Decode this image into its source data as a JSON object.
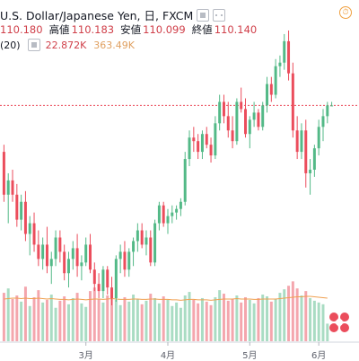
{
  "header": {
    "title": "U.S. Dollar/Japanese Yen, 日, FXCM",
    "open_value": "110.180",
    "high_label": "高値",
    "high_value": "110.183",
    "low_label": "安値",
    "low_value": "110.099",
    "close_label": "終値",
    "close_value": "110.140"
  },
  "volume_legend": {
    "label": "(20)",
    "value_a": "22.872K",
    "value_b": "363.49K"
  },
  "colors": {
    "up": "#53b987",
    "down": "#eb4d5c",
    "vol_up": "#a9dcc3",
    "vol_down": "#f4a6ad",
    "vol_ma": "#f0a050",
    "last_price_line": "#eb4d5c"
  },
  "icons": [
    "square-icon",
    "settings-dots-icon",
    "alert-clock-icon",
    "chart-logo-icon"
  ],
  "chart_data": {
    "type": "candlestick",
    "title": "U.S. Dollar/Japanese Yen, 日, FXCM",
    "x_tick_labels": [
      "3月",
      "4月",
      "5月",
      "6月"
    ],
    "ylim": [
      104.5,
      112.3
    ],
    "candles": [
      [
        108.8,
        109.0,
        107.4,
        107.6
      ],
      [
        107.6,
        108.2,
        106.8,
        108.0
      ],
      [
        108.0,
        108.3,
        107.4,
        107.6
      ],
      [
        107.6,
        107.9,
        106.7,
        106.9
      ],
      [
        106.9,
        107.6,
        106.6,
        107.4
      ],
      [
        107.4,
        107.7,
        106.3,
        106.5
      ],
      [
        106.5,
        107.0,
        105.9,
        106.8
      ],
      [
        106.8,
        107.1,
        106.0,
        106.2
      ],
      [
        106.2,
        106.6,
        105.6,
        105.8
      ],
      [
        105.8,
        106.4,
        105.5,
        106.2
      ],
      [
        106.2,
        106.7,
        105.4,
        105.6
      ],
      [
        105.6,
        106.0,
        105.1,
        105.8
      ],
      [
        105.8,
        106.6,
        105.6,
        106.4
      ],
      [
        106.4,
        106.6,
        105.7,
        106.0
      ],
      [
        106.0,
        106.2,
        105.2,
        105.4
      ],
      [
        105.4,
        106.0,
        105.0,
        105.8
      ],
      [
        105.8,
        106.3,
        105.5,
        106.1
      ],
      [
        106.1,
        106.5,
        105.3,
        105.6
      ],
      [
        105.6,
        105.9,
        105.2,
        105.7
      ],
      [
        105.7,
        106.4,
        105.6,
        106.2
      ],
      [
        106.2,
        106.5,
        105.4,
        105.5
      ],
      [
        105.5,
        105.7,
        104.9,
        105.1
      ],
      [
        105.1,
        105.4,
        104.7,
        104.9
      ],
      [
        104.9,
        105.6,
        104.7,
        105.5
      ],
      [
        105.5,
        105.6,
        104.8,
        105.0
      ],
      [
        105.0,
        105.3,
        104.5,
        104.7
      ],
      [
        104.7,
        105.9,
        104.6,
        105.8
      ],
      [
        105.8,
        106.2,
        105.4,
        106.0
      ],
      [
        106.0,
        106.3,
        105.3,
        105.5
      ],
      [
        105.5,
        106.1,
        105.3,
        106.0
      ],
      [
        106.0,
        106.4,
        105.6,
        106.3
      ],
      [
        106.3,
        106.8,
        106.0,
        106.6
      ],
      [
        106.6,
        106.8,
        106.1,
        106.2
      ],
      [
        106.2,
        106.6,
        105.9,
        106.4
      ],
      [
        106.4,
        106.6,
        105.6,
        105.7
      ],
      [
        105.7,
        106.9,
        105.6,
        106.8
      ],
      [
        106.8,
        107.4,
        106.6,
        107.3
      ],
      [
        107.3,
        107.4,
        106.7,
        106.8
      ],
      [
        106.8,
        107.2,
        106.5,
        107.0
      ],
      [
        107.0,
        107.3,
        106.8,
        107.1
      ],
      [
        107.1,
        107.3,
        106.9,
        107.2
      ],
      [
        107.2,
        107.5,
        107.0,
        107.4
      ],
      [
        107.4,
        108.8,
        107.3,
        108.6
      ],
      [
        108.6,
        109.4,
        108.4,
        109.2
      ],
      [
        109.2,
        109.5,
        108.8,
        109.1
      ],
      [
        109.1,
        109.3,
        108.6,
        108.8
      ],
      [
        108.8,
        109.4,
        108.6,
        109.3
      ],
      [
        109.3,
        109.5,
        108.9,
        109.0
      ],
      [
        109.0,
        109.2,
        108.5,
        108.7
      ],
      [
        108.7,
        109.8,
        108.6,
        109.6
      ],
      [
        109.6,
        110.4,
        109.4,
        110.2
      ],
      [
        110.2,
        110.4,
        109.6,
        109.8
      ],
      [
        109.8,
        110.2,
        109.2,
        109.4
      ],
      [
        109.4,
        109.8,
        108.9,
        109.1
      ],
      [
        109.1,
        110.3,
        109.0,
        110.2
      ],
      [
        110.2,
        110.6,
        109.9,
        110.0
      ],
      [
        110.0,
        110.3,
        109.2,
        109.3
      ],
      [
        109.3,
        109.8,
        108.9,
        109.7
      ],
      [
        109.7,
        110.2,
        109.5,
        109.9
      ],
      [
        109.9,
        110.0,
        109.4,
        109.5
      ],
      [
        109.5,
        110.2,
        109.4,
        110.1
      ],
      [
        110.1,
        110.9,
        109.9,
        110.7
      ],
      [
        110.7,
        110.9,
        110.2,
        110.4
      ],
      [
        110.4,
        111.4,
        110.3,
        111.2
      ],
      [
        111.2,
        111.5,
        110.9,
        111.3
      ],
      [
        111.3,
        112.1,
        111.1,
        111.9
      ],
      [
        111.9,
        112.2,
        110.8,
        111.0
      ],
      [
        111.0,
        111.3,
        109.2,
        109.4
      ],
      [
        109.4,
        109.8,
        108.6,
        108.8
      ],
      [
        108.8,
        109.6,
        108.6,
        109.4
      ],
      [
        109.4,
        109.7,
        107.8,
        108.2
      ],
      [
        108.2,
        108.6,
        107.6,
        108.3
      ],
      [
        108.3,
        109.0,
        108.1,
        108.9
      ],
      [
        108.9,
        109.7,
        108.7,
        109.5
      ],
      [
        109.5,
        110.0,
        109.1,
        109.8
      ],
      [
        109.8,
        110.2,
        109.6,
        110.1
      ],
      [
        110.1,
        110.2,
        110.1,
        110.1
      ]
    ],
    "volume": [
      55,
      60,
      48,
      52,
      45,
      62,
      40,
      50,
      58,
      44,
      47,
      53,
      38,
      46,
      51,
      42,
      49,
      55,
      43,
      39,
      57,
      61,
      48,
      44,
      52,
      59,
      47,
      41,
      50,
      45,
      53,
      48,
      42,
      46,
      54,
      49,
      43,
      51,
      47,
      40,
      44,
      38,
      52,
      56,
      47,
      43,
      49,
      45,
      41,
      50,
      58,
      54,
      46,
      48,
      52,
      44,
      50,
      47,
      43,
      49,
      53,
      51,
      45,
      48,
      55,
      59,
      63,
      68,
      60,
      52,
      57,
      49,
      46,
      44,
      42,
      20
    ],
    "volume_ma": [
      48,
      48.5,
      49,
      49,
      48.5,
      49,
      48.5,
      48.5,
      49,
      48.5,
      48,
      48.5,
      48,
      47.5,
      47.5,
      47,
      47.5,
      48,
      47.5,
      47,
      47.5,
      48,
      48,
      47.5,
      48,
      48.5,
      48,
      47.5,
      47.5,
      47.5,
      48,
      48,
      47.5,
      47.5,
      48,
      48,
      47.5,
      47.5,
      47.5,
      47,
      47,
      46.5,
      47,
      47.5,
      47.5,
      47,
      47,
      47,
      46.5,
      47,
      47.5,
      48,
      48,
      48,
      48.5,
      48,
      48,
      48,
      47.5,
      47.5,
      48,
      48,
      48,
      48,
      48.5,
      49,
      49.5,
      50,
      50.5,
      50.5,
      51,
      51,
      50.5,
      50,
      49.5,
      49
    ]
  }
}
